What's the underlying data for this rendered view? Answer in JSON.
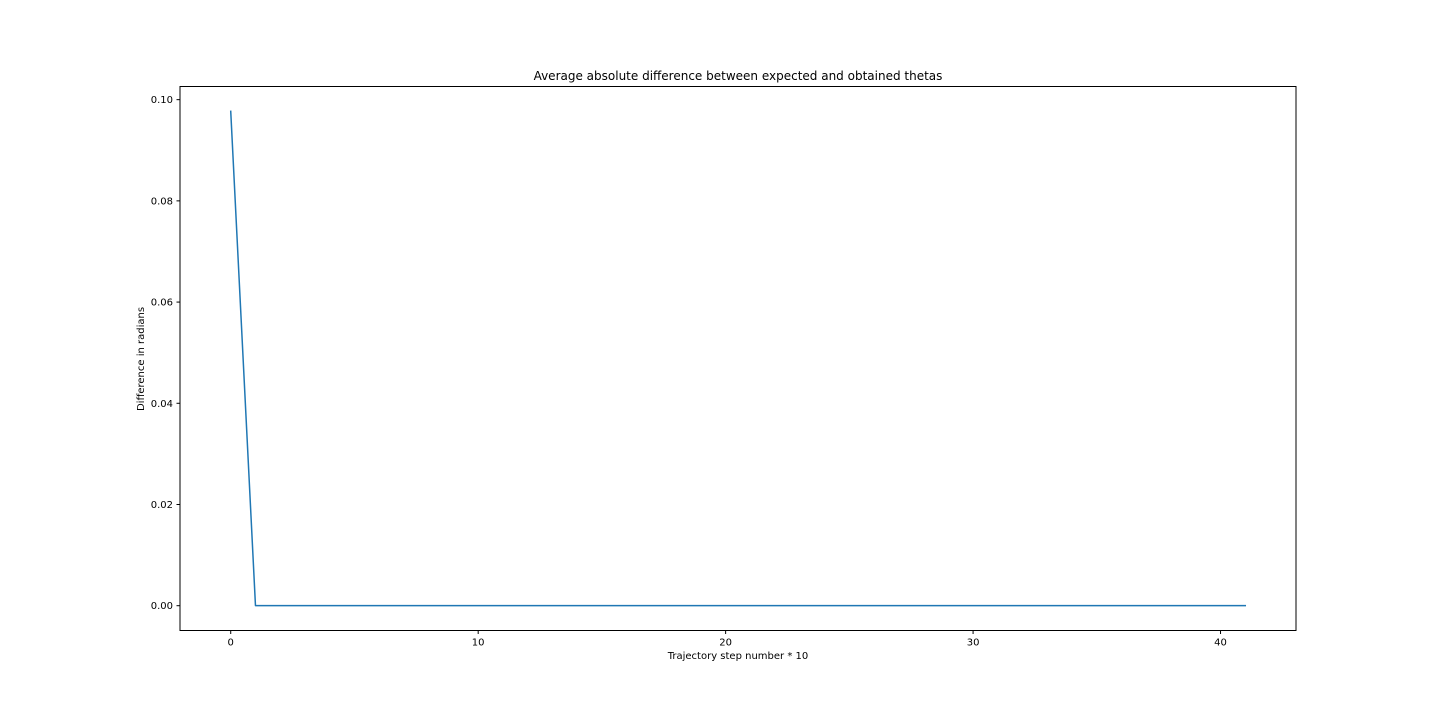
{
  "chart_data": {
    "type": "line",
    "title": "Average absolute difference between expected and obtained thetas",
    "xlabel": "Trajectory step number * 10",
    "ylabel": "Difference in radians",
    "xlim": [
      -2.05,
      43.05
    ],
    "ylim": [
      -0.0049,
      0.1026
    ],
    "xticks": [
      0,
      10,
      20,
      30,
      40
    ],
    "yticks": [
      0.0,
      0.02,
      0.04,
      0.06,
      0.08,
      0.1
    ],
    "ytick_labels": [
      "0.00",
      "0.02",
      "0.04",
      "0.06",
      "0.08",
      "0.10"
    ],
    "grid": false,
    "legend": "none",
    "series": [
      {
        "color": "#1f77b4",
        "x": [
          0,
          1,
          2,
          3,
          4,
          5,
          6,
          7,
          8,
          9,
          10,
          11,
          12,
          13,
          14,
          15,
          16,
          17,
          18,
          19,
          20,
          21,
          22,
          23,
          24,
          25,
          26,
          27,
          28,
          29,
          30,
          31,
          32,
          33,
          34,
          35,
          36,
          37,
          38,
          39,
          40,
          41
        ],
        "y": [
          0.0977,
          2e-05,
          1e-05,
          1e-05,
          1e-05,
          1e-05,
          1e-05,
          1e-05,
          1e-05,
          1e-05,
          1e-05,
          1e-05,
          1e-05,
          2e-05,
          1e-05,
          1e-05,
          1e-05,
          1e-05,
          1e-05,
          1e-05,
          2e-05,
          1e-05,
          1e-05,
          1e-05,
          1e-05,
          1e-05,
          1e-05,
          1e-05,
          1e-05,
          1e-05,
          1e-05,
          1e-05,
          1e-05,
          1e-05,
          1e-05,
          1e-05,
          1e-05,
          1e-05,
          1e-05,
          1e-05,
          1e-05,
          1e-05
        ]
      }
    ]
  }
}
